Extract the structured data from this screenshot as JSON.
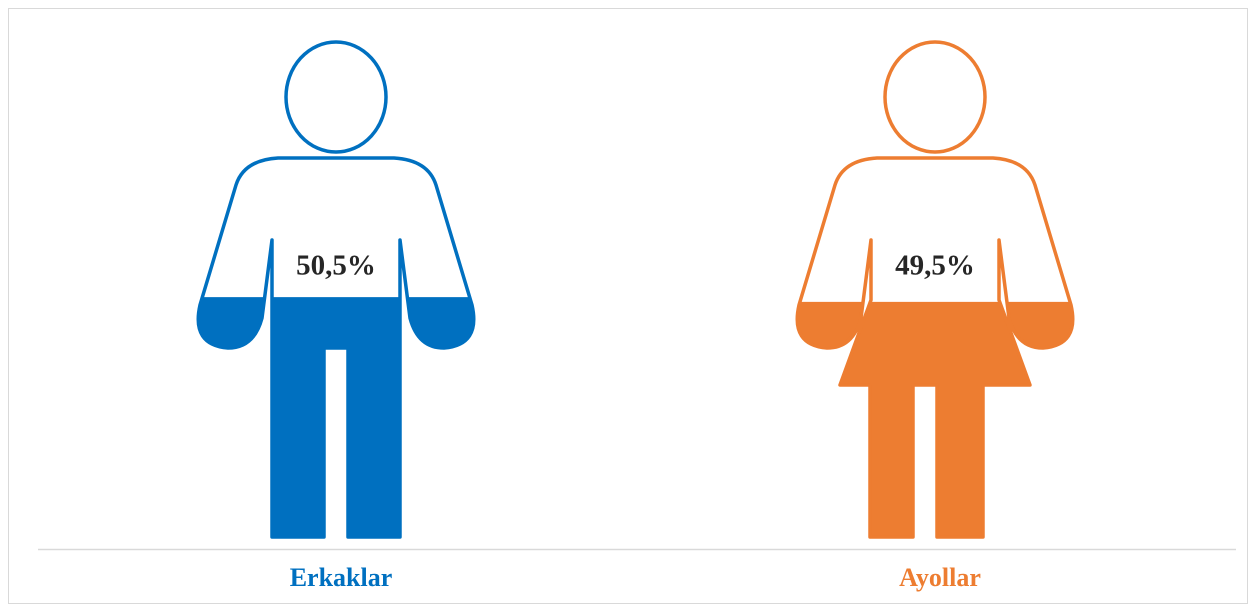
{
  "chart_data": {
    "type": "pictograph",
    "categories": [
      "Erkaklar",
      "Ayollar"
    ],
    "values": [
      50.5,
      49.5
    ],
    "value_labels": [
      "50,5%",
      "49,5%"
    ],
    "colors": [
      "#0070c0",
      "#ed7d31"
    ],
    "shapes": [
      "man",
      "woman"
    ]
  }
}
